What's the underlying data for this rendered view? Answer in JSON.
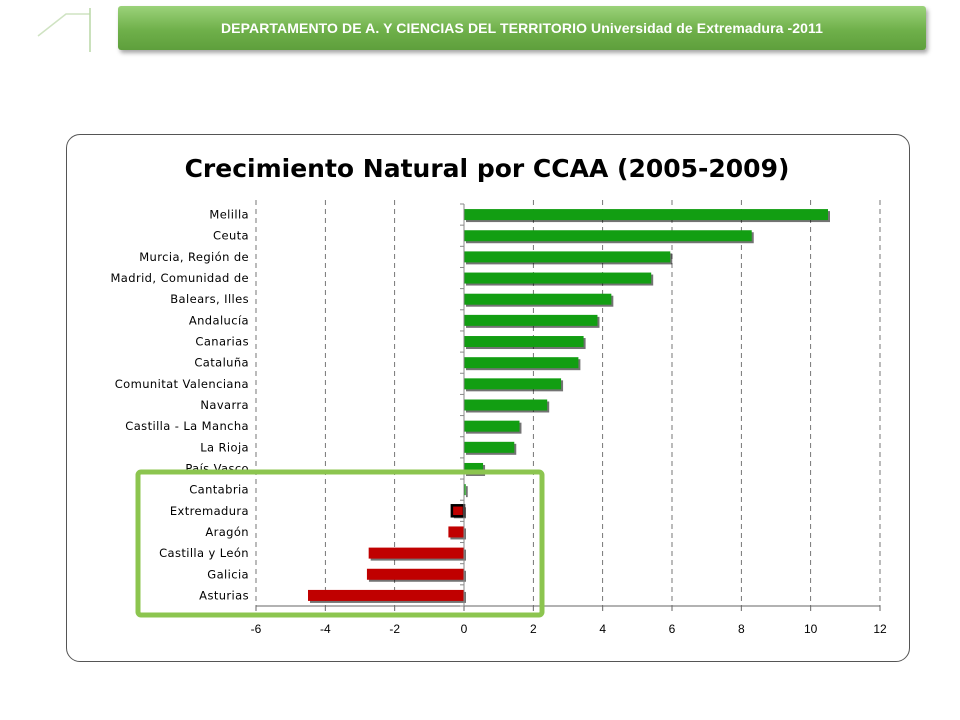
{
  "header": {
    "title": "DEPARTAMENTO DE A. Y CIENCIAS DEL TERRITORIO Universidad de Extremadura -2011"
  },
  "colors": {
    "positive": "#129e12",
    "negative": "#c00000",
    "highlight_box": "#8cc54f",
    "header_green": "#6fb04a"
  },
  "chart_data": {
    "type": "bar",
    "orientation": "horizontal",
    "title": "Crecimiento Natural por CCAA (2005-2009)",
    "xlabel": "",
    "ylabel": "",
    "xlim": [
      -6,
      12
    ],
    "xticks": [
      -6,
      -4,
      -2,
      0,
      2,
      4,
      6,
      8,
      10,
      12
    ],
    "grid": "vertical dashed",
    "legend": "none",
    "categories": [
      "Melilla",
      "Ceuta",
      "Murcia, Región de",
      "Madrid, Comunidad de",
      "Balears, Illes",
      "Andalucía",
      "Canarias",
      "Cataluña",
      "Comunitat Valenciana",
      "Navarra",
      "Castilla - La Mancha",
      "La Rioja",
      "País Vasco",
      "Cantabria",
      "Extremadura",
      "Aragón",
      "Castilla y León",
      "Galicia",
      "Asturias"
    ],
    "values": [
      10.5,
      8.3,
      5.95,
      5.4,
      4.25,
      3.85,
      3.45,
      3.3,
      2.8,
      2.4,
      1.6,
      1.45,
      0.55,
      0.05,
      -0.35,
      -0.45,
      -2.75,
      -2.8,
      -4.5
    ],
    "highlighted": "Extremadura",
    "highlight_box_covers": [
      "Cantabria",
      "Extremadura",
      "Aragón",
      "Castilla y León",
      "Galicia",
      "Asturias"
    ]
  }
}
